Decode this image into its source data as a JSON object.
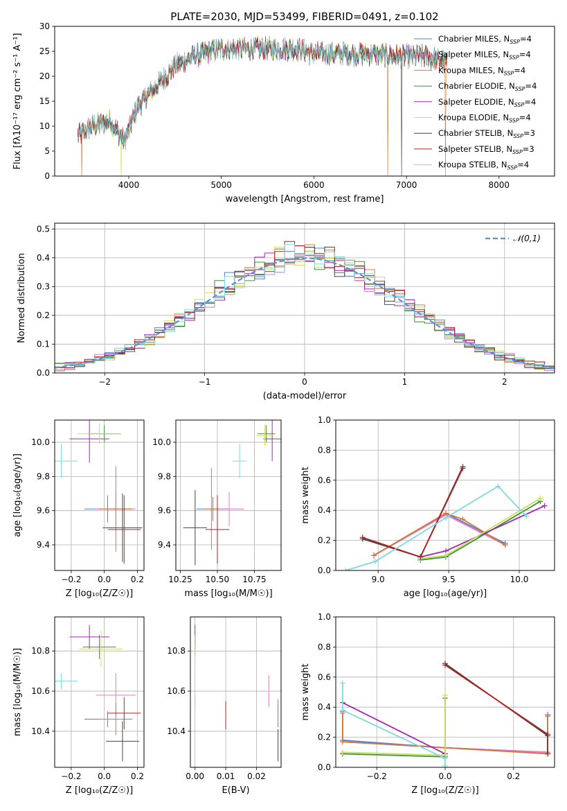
{
  "figure_title": "PLATE=2030, MJD=53499, FIBERID=0491, z=0.102",
  "colors": {
    "Chabrier MILES": "#4e7fcf",
    "Salpeter MILES": "#e377c2",
    "Kroupa MILES": "#d2783a",
    "Chabrier ELODIE": "#3c8f3c",
    "Salpeter ELODIE": "#9c27b0",
    "Kroupa ELODIE": "#c8e055",
    "Chabrier STELIB": "#444444",
    "Salpeter STELIB": "#b22222",
    "Kroupa STELIB": "#7fd8dc"
  },
  "chart_data": [
    {
      "type": "line",
      "id": "spectrum",
      "title": "PLATE=2030, MJD=53499, FIBERID=0491, z=0.102",
      "xlabel": "wavelength [Angstrom, rest frame]",
      "ylabel": "Flux [fλ10⁻¹⁷ erg cm⁻² s⁻¹ A⁻¹]",
      "xlim": [
        3200,
        8600
      ],
      "ylim": [
        0,
        30
      ],
      "xticks": [
        4000,
        5000,
        6000,
        7000,
        8000
      ],
      "yticks": [
        0,
        5,
        10,
        15,
        20,
        25,
        30
      ],
      "grid": false,
      "legend": "top-right",
      "legend_entries": [
        "Chabrier MILES, N_SSP=4",
        "Salpeter MILES, N_SSP=4",
        "Kroupa MILES, N_SSP=4",
        "Chabrier ELODIE, N_SSP=4",
        "Salpeter ELODIE, N_SSP=4",
        "Kroupa ELODIE, N_SSP=4",
        "Chabrier STELIB, N_SSP=3",
        "Salpeter STELIB, N_SSP=3",
        "Kroupa STELIB, N_SSP=4"
      ],
      "continuum": {
        "x": [
          3450,
          3600,
          3800,
          3950,
          4100,
          4300,
          4500,
          4700,
          5000,
          5200,
          5500,
          5800,
          6000,
          6300,
          6600,
          6900,
          7200,
          7400
        ],
        "y": [
          8,
          10,
          11,
          7,
          14,
          18,
          22,
          24,
          25.5,
          25.5,
          25.5,
          25.5,
          24.5,
          24.5,
          24.5,
          24,
          24,
          23
        ]
      },
      "dropouts": [
        {
          "x": 3490,
          "series": "Kroupa MILES"
        },
        {
          "x": 3920,
          "series": "Kroupa ELODIE"
        },
        {
          "x": 6800,
          "series": "Kroupa MILES"
        },
        {
          "x": 6950,
          "series": "Chabrier STELIB"
        },
        {
          "x": 7420,
          "series": "Kroupa MILES"
        }
      ]
    },
    {
      "type": "bar",
      "id": "residuals",
      "xlabel": "(data-model)/error",
      "ylabel": "Normed distribution",
      "xlim": [
        -2.5,
        2.5
      ],
      "ylim": [
        0,
        0.52
      ],
      "xticks": [
        -2,
        -1,
        0,
        1,
        2
      ],
      "yticks": [
        0.0,
        0.1,
        0.2,
        0.3,
        0.4,
        0.5
      ],
      "grid": true,
      "legend": "top-right",
      "reference_label": "𝒩(0,1)",
      "bin_width": 0.1
    },
    {
      "type": "scatter",
      "id": "age_vs_Z",
      "xlabel": "Z [log₁₀(Z/Z☉)]",
      "ylabel": "age  [log₁₀(age/yr)]",
      "xlim": [
        -0.3,
        0.24
      ],
      "ylim": [
        9.25,
        10.13
      ],
      "xticks": [
        -0.2,
        0.0,
        0.2
      ],
      "yticks": [
        9.4,
        9.6,
        9.8,
        10.0
      ],
      "grid": true,
      "points": [
        {
          "series": "Chabrier MILES",
          "x": 0.02,
          "y": 9.61,
          "xerr": 0.14,
          "yerr": 0.08
        },
        {
          "series": "Salpeter MILES",
          "x": 0.07,
          "y": 9.61,
          "xerr": 0.12,
          "yerr": 0.1
        },
        {
          "series": "Kroupa MILES",
          "x": 0.07,
          "y": 9.61,
          "xerr": 0.1,
          "yerr": 0.25
        },
        {
          "series": "Chabrier ELODIE",
          "x": 0.0,
          "y": 10.05,
          "xerr": 0.1,
          "yerr": 0.05
        },
        {
          "series": "Salpeter ELODIE",
          "x": -0.09,
          "y": 10.02,
          "xerr": 0.12,
          "yerr": 0.14
        },
        {
          "series": "Kroupa ELODIE",
          "x": -0.03,
          "y": 10.05,
          "xerr": 0.13,
          "yerr": 0.06
        },
        {
          "series": "Chabrier STELIB",
          "x": 0.11,
          "y": 9.5,
          "xerr": 0.12,
          "yerr": 0.2
        },
        {
          "series": "Salpeter STELIB",
          "x": 0.12,
          "y": 9.49,
          "xerr": 0.1,
          "yerr": 0.2
        },
        {
          "series": "Kroupa STELIB",
          "x": -0.26,
          "y": 9.89,
          "xerr": 0.1,
          "yerr": 0.1
        }
      ]
    },
    {
      "type": "scatter",
      "id": "age_vs_mass",
      "xlabel": "mass [log₁₀(M/M☉)]",
      "ylabel": "",
      "xlim": [
        10.22,
        10.93
      ],
      "ylim": [
        9.25,
        10.13
      ],
      "xticks": [
        10.25,
        10.5,
        10.75
      ],
      "yticks": [
        9.4,
        9.6,
        9.8,
        10.0
      ],
      "grid": true,
      "points": [
        {
          "series": "Chabrier MILES",
          "x": 10.47,
          "y": 9.61,
          "xerr": 0.11,
          "yerr": 0.07
        },
        {
          "series": "Salpeter MILES",
          "x": 10.58,
          "y": 9.61,
          "xerr": 0.1,
          "yerr": 0.1
        },
        {
          "series": "Kroupa MILES",
          "x": 10.46,
          "y": 9.61,
          "xerr": 0.05,
          "yerr": 0.24
        },
        {
          "series": "Chabrier ELODIE",
          "x": 10.83,
          "y": 10.05,
          "xerr": 0.06,
          "yerr": 0.05
        },
        {
          "series": "Salpeter ELODIE",
          "x": 10.87,
          "y": 10.02,
          "xerr": 0.06,
          "yerr": 0.13
        },
        {
          "series": "Kroupa ELODIE",
          "x": 10.82,
          "y": 10.04,
          "xerr": 0.06,
          "yerr": 0.06
        },
        {
          "series": "Chabrier STELIB",
          "x": 10.35,
          "y": 9.5,
          "xerr": 0.08,
          "yerr": 0.22
        },
        {
          "series": "Salpeter STELIB",
          "x": 10.5,
          "y": 9.49,
          "xerr": 0.08,
          "yerr": 0.2
        },
        {
          "series": "Kroupa STELIB",
          "x": 10.65,
          "y": 9.89,
          "xerr": 0.05,
          "yerr": 0.1
        }
      ]
    },
    {
      "type": "line",
      "id": "weight_vs_age",
      "xlabel": "age  [log₁₀(age/yr)]",
      "ylabel": "mass weight",
      "xlim": [
        8.7,
        10.25
      ],
      "ylim": [
        0,
        1.0
      ],
      "xticks": [
        9.0,
        9.5,
        10.0
      ],
      "yticks": [
        0.0,
        0.2,
        0.4,
        0.6,
        0.8,
        1.0
      ],
      "grid": true,
      "series": [
        {
          "name": "Chabrier MILES",
          "x": [
            8.97,
            9.48,
            9.9
          ],
          "y": [
            0.1,
            0.38,
            0.18
          ]
        },
        {
          "name": "Salpeter MILES",
          "x": [
            8.97,
            9.48,
            9.9
          ],
          "y": [
            0.1,
            0.37,
            0.17
          ]
        },
        {
          "name": "Kroupa MILES",
          "x": [
            8.97,
            9.48,
            9.6,
            9.9
          ],
          "y": [
            0.1,
            0.38,
            0.34,
            0.17
          ]
        },
        {
          "name": "Chabrier ELODIE",
          "x": [
            9.3,
            9.48,
            10.15
          ],
          "y": [
            0.07,
            0.09,
            0.46
          ]
        },
        {
          "name": "Salpeter ELODIE",
          "x": [
            9.3,
            9.48,
            10.18
          ],
          "y": [
            0.09,
            0.13,
            0.43
          ]
        },
        {
          "name": "Kroupa ELODIE",
          "x": [
            9.3,
            9.48,
            10.15
          ],
          "y": [
            0.08,
            0.1,
            0.48
          ]
        },
        {
          "name": "Chabrier STELIB",
          "x": [
            8.89,
            9.3,
            9.6
          ],
          "y": [
            0.21,
            0.09,
            0.69
          ]
        },
        {
          "name": "Salpeter STELIB",
          "x": [
            8.89,
            9.3,
            9.6
          ],
          "y": [
            0.22,
            0.09,
            0.68
          ]
        },
        {
          "name": "Kroupa STELIB",
          "x": [
            8.77,
            8.98,
            9.48,
            9.85,
            10.05
          ],
          "y": [
            0.0,
            0.06,
            0.35,
            0.56,
            0.36
          ]
        }
      ]
    },
    {
      "type": "scatter",
      "id": "mass_vs_Z",
      "xlabel": "Z [log₁₀(Z/Z☉)]",
      "ylabel": "mass [log₁₀(M/M☉)]",
      "xlim": [
        -0.3,
        0.24
      ],
      "ylim": [
        10.22,
        10.97
      ],
      "xticks": [
        -0.2,
        0.0,
        0.2
      ],
      "yticks": [
        10.4,
        10.6,
        10.8
      ],
      "grid": true,
      "points": [
        {
          "series": "Chabrier MILES",
          "x": 0.02,
          "y": 10.46,
          "xerr": 0.14,
          "yerr": 0.04
        },
        {
          "series": "Salpeter MILES",
          "x": 0.07,
          "y": 10.58,
          "xerr": 0.12,
          "yerr": 0.11
        },
        {
          "series": "Kroupa MILES",
          "x": 0.07,
          "y": 10.46,
          "xerr": 0.1,
          "yerr": 0.08
        },
        {
          "series": "Chabrier ELODIE",
          "x": -0.03,
          "y": 10.82,
          "xerr": 0.1,
          "yerr": 0.06
        },
        {
          "series": "Salpeter ELODIE",
          "x": -0.09,
          "y": 10.87,
          "xerr": 0.12,
          "yerr": 0.06
        },
        {
          "series": "Kroupa ELODIE",
          "x": -0.02,
          "y": 10.81,
          "xerr": 0.13,
          "yerr": 0.09
        },
        {
          "series": "Chabrier STELIB",
          "x": 0.11,
          "y": 10.35,
          "xerr": 0.1,
          "yerr": 0.1
        },
        {
          "series": "Salpeter STELIB",
          "x": 0.12,
          "y": 10.49,
          "xerr": 0.1,
          "yerr": 0.08
        },
        {
          "series": "Kroupa STELIB",
          "x": -0.26,
          "y": 10.65,
          "xerr": 0.1,
          "yerr": 0.04
        }
      ]
    },
    {
      "type": "scatter",
      "id": "mass_vs_ebv",
      "xlabel": "E(B-V)",
      "ylabel": "",
      "xlim": [
        -0.0015,
        0.028
      ],
      "ylim": [
        10.22,
        10.97
      ],
      "xticks": [
        0.0,
        0.01,
        0.02
      ],
      "yticks": [
        10.4,
        10.6,
        10.8
      ],
      "grid": true,
      "points": [
        {
          "series": "Chabrier MILES",
          "x": 0.027,
          "y": 10.48,
          "xerr": 0,
          "yerr": 0.06
        },
        {
          "series": "Salpeter MILES",
          "x": 0.024,
          "y": 10.6,
          "xerr": 0,
          "yerr": 0.08
        },
        {
          "series": "Kroupa MILES",
          "x": 0.027,
          "y": 10.5,
          "xerr": 0,
          "yerr": 0.06
        },
        {
          "series": "Chabrier ELODIE",
          "x": 0.0,
          "y": 10.83,
          "xerr": 0,
          "yerr": 0.05
        },
        {
          "series": "Salpeter ELODIE",
          "x": 0.0,
          "y": 10.88,
          "xerr": 0,
          "yerr": 0.05
        },
        {
          "series": "Kroupa ELODIE",
          "x": 0.0,
          "y": 10.8,
          "xerr": 0,
          "yerr": 0.08
        },
        {
          "series": "Chabrier STELIB",
          "x": 0.027,
          "y": 10.33,
          "xerr": 0,
          "yerr": 0.08
        },
        {
          "series": "Salpeter STELIB",
          "x": 0.01,
          "y": 10.48,
          "xerr": 0,
          "yerr": 0.07
        },
        {
          "series": "Kroupa STELIB",
          "x": 0.0,
          "y": 10.56,
          "xerr": 0,
          "yerr": 0.05
        }
      ]
    },
    {
      "type": "line",
      "id": "weight_vs_Z",
      "xlabel": "Z [log₁₀(Z/Z☉)]",
      "ylabel": "mass weight",
      "xlim": [
        -0.32,
        0.32
      ],
      "ylim": [
        0,
        1.0
      ],
      "xticks": [
        -0.2,
        0.0,
        0.2
      ],
      "yticks": [
        0.0,
        0.2,
        0.4,
        0.6,
        0.8,
        1.0
      ],
      "grid": true,
      "series": [
        {
          "name": "Chabrier MILES",
          "x": [
            -0.3,
            -0.3,
            0.0,
            0.3,
            0.3
          ],
          "y": [
            0.37,
            0.18,
            0.13,
            0.1,
            0.35
          ]
        },
        {
          "name": "Salpeter MILES",
          "x": [
            -0.3,
            -0.3,
            0.0,
            0.3,
            0.3
          ],
          "y": [
            0.36,
            0.17,
            0.13,
            0.1,
            0.34
          ]
        },
        {
          "name": "Kroupa MILES",
          "x": [
            -0.3,
            -0.3,
            0.0,
            0.3,
            0.3
          ],
          "y": [
            0.38,
            0.17,
            0.13,
            0.09,
            0.34
          ]
        },
        {
          "name": "Chabrier ELODIE",
          "x": [
            -0.3,
            0.0,
            0.0
          ],
          "y": [
            0.09,
            0.07,
            0.46
          ]
        },
        {
          "name": "Salpeter ELODIE",
          "x": [
            -0.3,
            0.0
          ],
          "y": [
            0.43,
            0.09
          ]
        },
        {
          "name": "Kroupa ELODIE",
          "x": [
            -0.3,
            0.0,
            0.0
          ],
          "y": [
            0.1,
            0.08,
            0.48
          ]
        },
        {
          "name": "Chabrier STELIB",
          "x": [
            0.0,
            0.3,
            0.3
          ],
          "y": [
            0.69,
            0.21,
            0.09
          ]
        },
        {
          "name": "Salpeter STELIB",
          "x": [
            0.0,
            0.3,
            0.3
          ],
          "y": [
            0.68,
            0.22,
            0.09
          ]
        },
        {
          "name": "Kroupa STELIB",
          "x": [
            -0.3,
            -0.3,
            0.0,
            0.0
          ],
          "y": [
            0.56,
            0.38,
            0.06,
            0.01
          ]
        }
      ]
    }
  ]
}
